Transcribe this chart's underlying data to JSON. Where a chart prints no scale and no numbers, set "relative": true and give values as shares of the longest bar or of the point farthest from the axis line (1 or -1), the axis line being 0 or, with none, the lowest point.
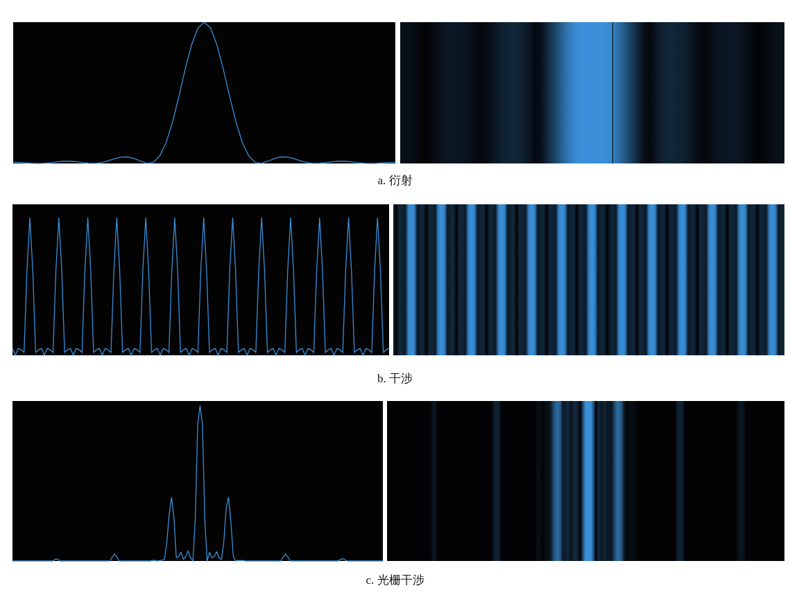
{
  "chart_data": [
    {
      "type": "line",
      "relative": true,
      "annotations": [
        "a. 衍射"
      ],
      "categories": [
        null,
        null,
        null,
        null,
        null,
        null,
        null,
        null,
        null,
        null,
        null,
        null,
        null,
        null,
        null,
        null,
        null,
        null,
        null,
        null,
        null,
        null,
        null,
        null,
        null,
        null,
        null,
        null,
        null,
        null,
        null,
        null,
        null,
        null,
        null,
        null,
        null,
        null,
        null,
        null,
        null,
        null,
        null,
        null,
        null,
        null,
        null,
        null,
        null,
        null,
        null,
        null,
        null,
        null,
        null,
        null,
        null,
        null,
        null,
        null,
        null
      ],
      "series": [
        {
          "color": "#3a8fd8",
          "values": [
            0.008,
            0.007,
            0.004,
            0.001,
            0,
            0.002,
            0.006,
            0.012,
            0.016,
            0.016,
            0.012,
            0.006,
            0.001,
            0.001,
            0.007,
            0.02,
            0.035,
            0.045,
            0.046,
            0.035,
            0.016,
            0.001,
            0.007,
            0.052,
            0.146,
            0.29,
            0.471,
            0.666,
            0.838,
            0.958,
            1,
            0.958,
            0.838,
            0.666,
            0.471,
            0.29,
            0.146,
            0.052,
            0.007,
            0.001,
            0.016,
            0.035,
            0.046,
            0.045,
            0.035,
            0.02,
            0.007,
            0.001,
            0.001,
            0.006,
            0.012,
            0.016,
            0.016,
            0.012,
            0.006,
            0.002,
            0,
            0.001,
            0.004,
            0.007,
            0.008
          ]
        }
      ]
    },
    {
      "type": "line",
      "relative": true,
      "annotations": [
        "b. 干涉"
      ],
      "categories": [
        null,
        null,
        null,
        null,
        null,
        null,
        null,
        null,
        null,
        null,
        null,
        null,
        null,
        null,
        null,
        null,
        null,
        null,
        null,
        null,
        null,
        null,
        null,
        null,
        null,
        null,
        null,
        null,
        null,
        null,
        null,
        null,
        null,
        null,
        null,
        null,
        null,
        null,
        null,
        null,
        null,
        null,
        null,
        null,
        null,
        null,
        null,
        null,
        null,
        null,
        null,
        null,
        null,
        null,
        null,
        null,
        null,
        null,
        null,
        null,
        null,
        null,
        null,
        null,
        null,
        null,
        null,
        null,
        null,
        null,
        null,
        null,
        null,
        null,
        null,
        null,
        null,
        null,
        null,
        null,
        null,
        null,
        null,
        null,
        null,
        null,
        null,
        null,
        null,
        null,
        null,
        null,
        null,
        null,
        null,
        null,
        null,
        null,
        null,
        null,
        null,
        null,
        null,
        null,
        null,
        null,
        null,
        null,
        null,
        null,
        null,
        null,
        null,
        null,
        null,
        null,
        null,
        null,
        null,
        null,
        null,
        null,
        null,
        null,
        null,
        null,
        null,
        null,
        null,
        null,
        null
      ],
      "series": [
        {
          "color": "#3a8fd8",
          "values": [
            0.05,
            0,
            0.05,
            0.04,
            0.02,
            0.62,
            1,
            0.62,
            0.02,
            0.04,
            0.05,
            0,
            0.05,
            0.04,
            0.02,
            0.62,
            1,
            0.62,
            0.02,
            0.04,
            0.05,
            0,
            0.05,
            0.04,
            0.02,
            0.62,
            1,
            0.62,
            0.02,
            0.04,
            0.05,
            0,
            0.05,
            0.04,
            0.02,
            0.62,
            1,
            0.62,
            0.02,
            0.04,
            0.05,
            0,
            0.05,
            0.04,
            0.02,
            0.62,
            1,
            0.62,
            0.02,
            0.04,
            0.05,
            0,
            0.05,
            0.04,
            0.02,
            0.62,
            1,
            0.62,
            0.02,
            0.04,
            0.05,
            0,
            0.05,
            0.04,
            0.02,
            0.62,
            1,
            0.62,
            0.02,
            0.04,
            0.05,
            0,
            0.05,
            0.04,
            0.02,
            0.62,
            1,
            0.62,
            0.02,
            0.04,
            0.05,
            0,
            0.05,
            0.04,
            0.02,
            0.62,
            1,
            0.62,
            0.02,
            0.04,
            0.05,
            0,
            0.05,
            0.04,
            0.02,
            0.62,
            1,
            0.62,
            0.02,
            0.04,
            0.05,
            0,
            0.05,
            0.04,
            0.02,
            0.62,
            1,
            0.62,
            0.02,
            0.04,
            0.05,
            0,
            0.05,
            0.04,
            0.02,
            0.62,
            1,
            0.62,
            0.02,
            0.04,
            0.05,
            0,
            0.05,
            0.04,
            0.02,
            0.62,
            1,
            0.62,
            0.02,
            0.04,
            0.05
          ]
        }
      ]
    },
    {
      "type": "line",
      "relative": true,
      "annotations": [
        "c. 光栅干涉"
      ],
      "categories": [
        null,
        null,
        null,
        null,
        null,
        null,
        null,
        null,
        null,
        null,
        null,
        null,
        null,
        null,
        null,
        null,
        null,
        null,
        null,
        null,
        null,
        null,
        null,
        null,
        null,
        null,
        null,
        null,
        null,
        null,
        null,
        null,
        null,
        null,
        null,
        null,
        null,
        null,
        null,
        null,
        null,
        null,
        null,
        null,
        null,
        null,
        null,
        null,
        null,
        null,
        null,
        null,
        null,
        null,
        null,
        null,
        null,
        null,
        null,
        null,
        null,
        null,
        null,
        null,
        null,
        null,
        null,
        null,
        null,
        null,
        null,
        null,
        null,
        null,
        null,
        null,
        null,
        null,
        null,
        null,
        null,
        null,
        null,
        null,
        null,
        null,
        null,
        null,
        null,
        null,
        null,
        null,
        null,
        null,
        null,
        null,
        null,
        null,
        null,
        null,
        null,
        null,
        null,
        null,
        null,
        null,
        null,
        null,
        null,
        null,
        null,
        null,
        null,
        null,
        null,
        null,
        null,
        null,
        null,
        null,
        null,
        null,
        null,
        null,
        null,
        null,
        null,
        null,
        null,
        null,
        null,
        null,
        null,
        null,
        null,
        null,
        null,
        null,
        null,
        null,
        null,
        null,
        null,
        null,
        null,
        null,
        null,
        null,
        null,
        null,
        null,
        null,
        null,
        null,
        null,
        null,
        null
      ],
      "series": [
        {
          "color": "#3a8fd8",
          "values": [
            0,
            0,
            0,
            0,
            0,
            0,
            0,
            0,
            0,
            0,
            0,
            0,
            0,
            0,
            0,
            0,
            0,
            0,
            0.012,
            0.012,
            0,
            0,
            0,
            0,
            0,
            0,
            0,
            0,
            0,
            0,
            0,
            0,
            0,
            0,
            0,
            0,
            0,
            0,
            0,
            0,
            0,
            0,
            0.025,
            0.045,
            0.025,
            0,
            0,
            0,
            0,
            0,
            0,
            0,
            0,
            0,
            0,
            0,
            0,
            0,
            0,
            0.004,
            0.004,
            0,
            0.003,
            0.005,
            0.01,
            0.12,
            0.3,
            0.41,
            0.28,
            0.02,
            0.03,
            0.056,
            0.01,
            0.03,
            0.066,
            0.02,
            0,
            0.27,
            0.88,
            1,
            0.88,
            0.27,
            0,
            0.056,
            0.02,
            0.03,
            0.06,
            0.02,
            0.01,
            0.12,
            0.34,
            0.41,
            0.25,
            0.03,
            0,
            0.004,
            0.003,
            0.004,
            0,
            0,
            0,
            0,
            0,
            0,
            0,
            0,
            0,
            0,
            0,
            0,
            0,
            0,
            0,
            0,
            0.025,
            0.045,
            0.025,
            0,
            0,
            0,
            0,
            0,
            0,
            0,
            0,
            0,
            0,
            0,
            0,
            0,
            0,
            0,
            0,
            0,
            0,
            0,
            0,
            0,
            0.008,
            0.015,
            0.008,
            0,
            0,
            0,
            0,
            0,
            0,
            0,
            0,
            0,
            0,
            0,
            0,
            0,
            0,
            0,
            0
          ]
        }
      ]
    }
  ]
}
